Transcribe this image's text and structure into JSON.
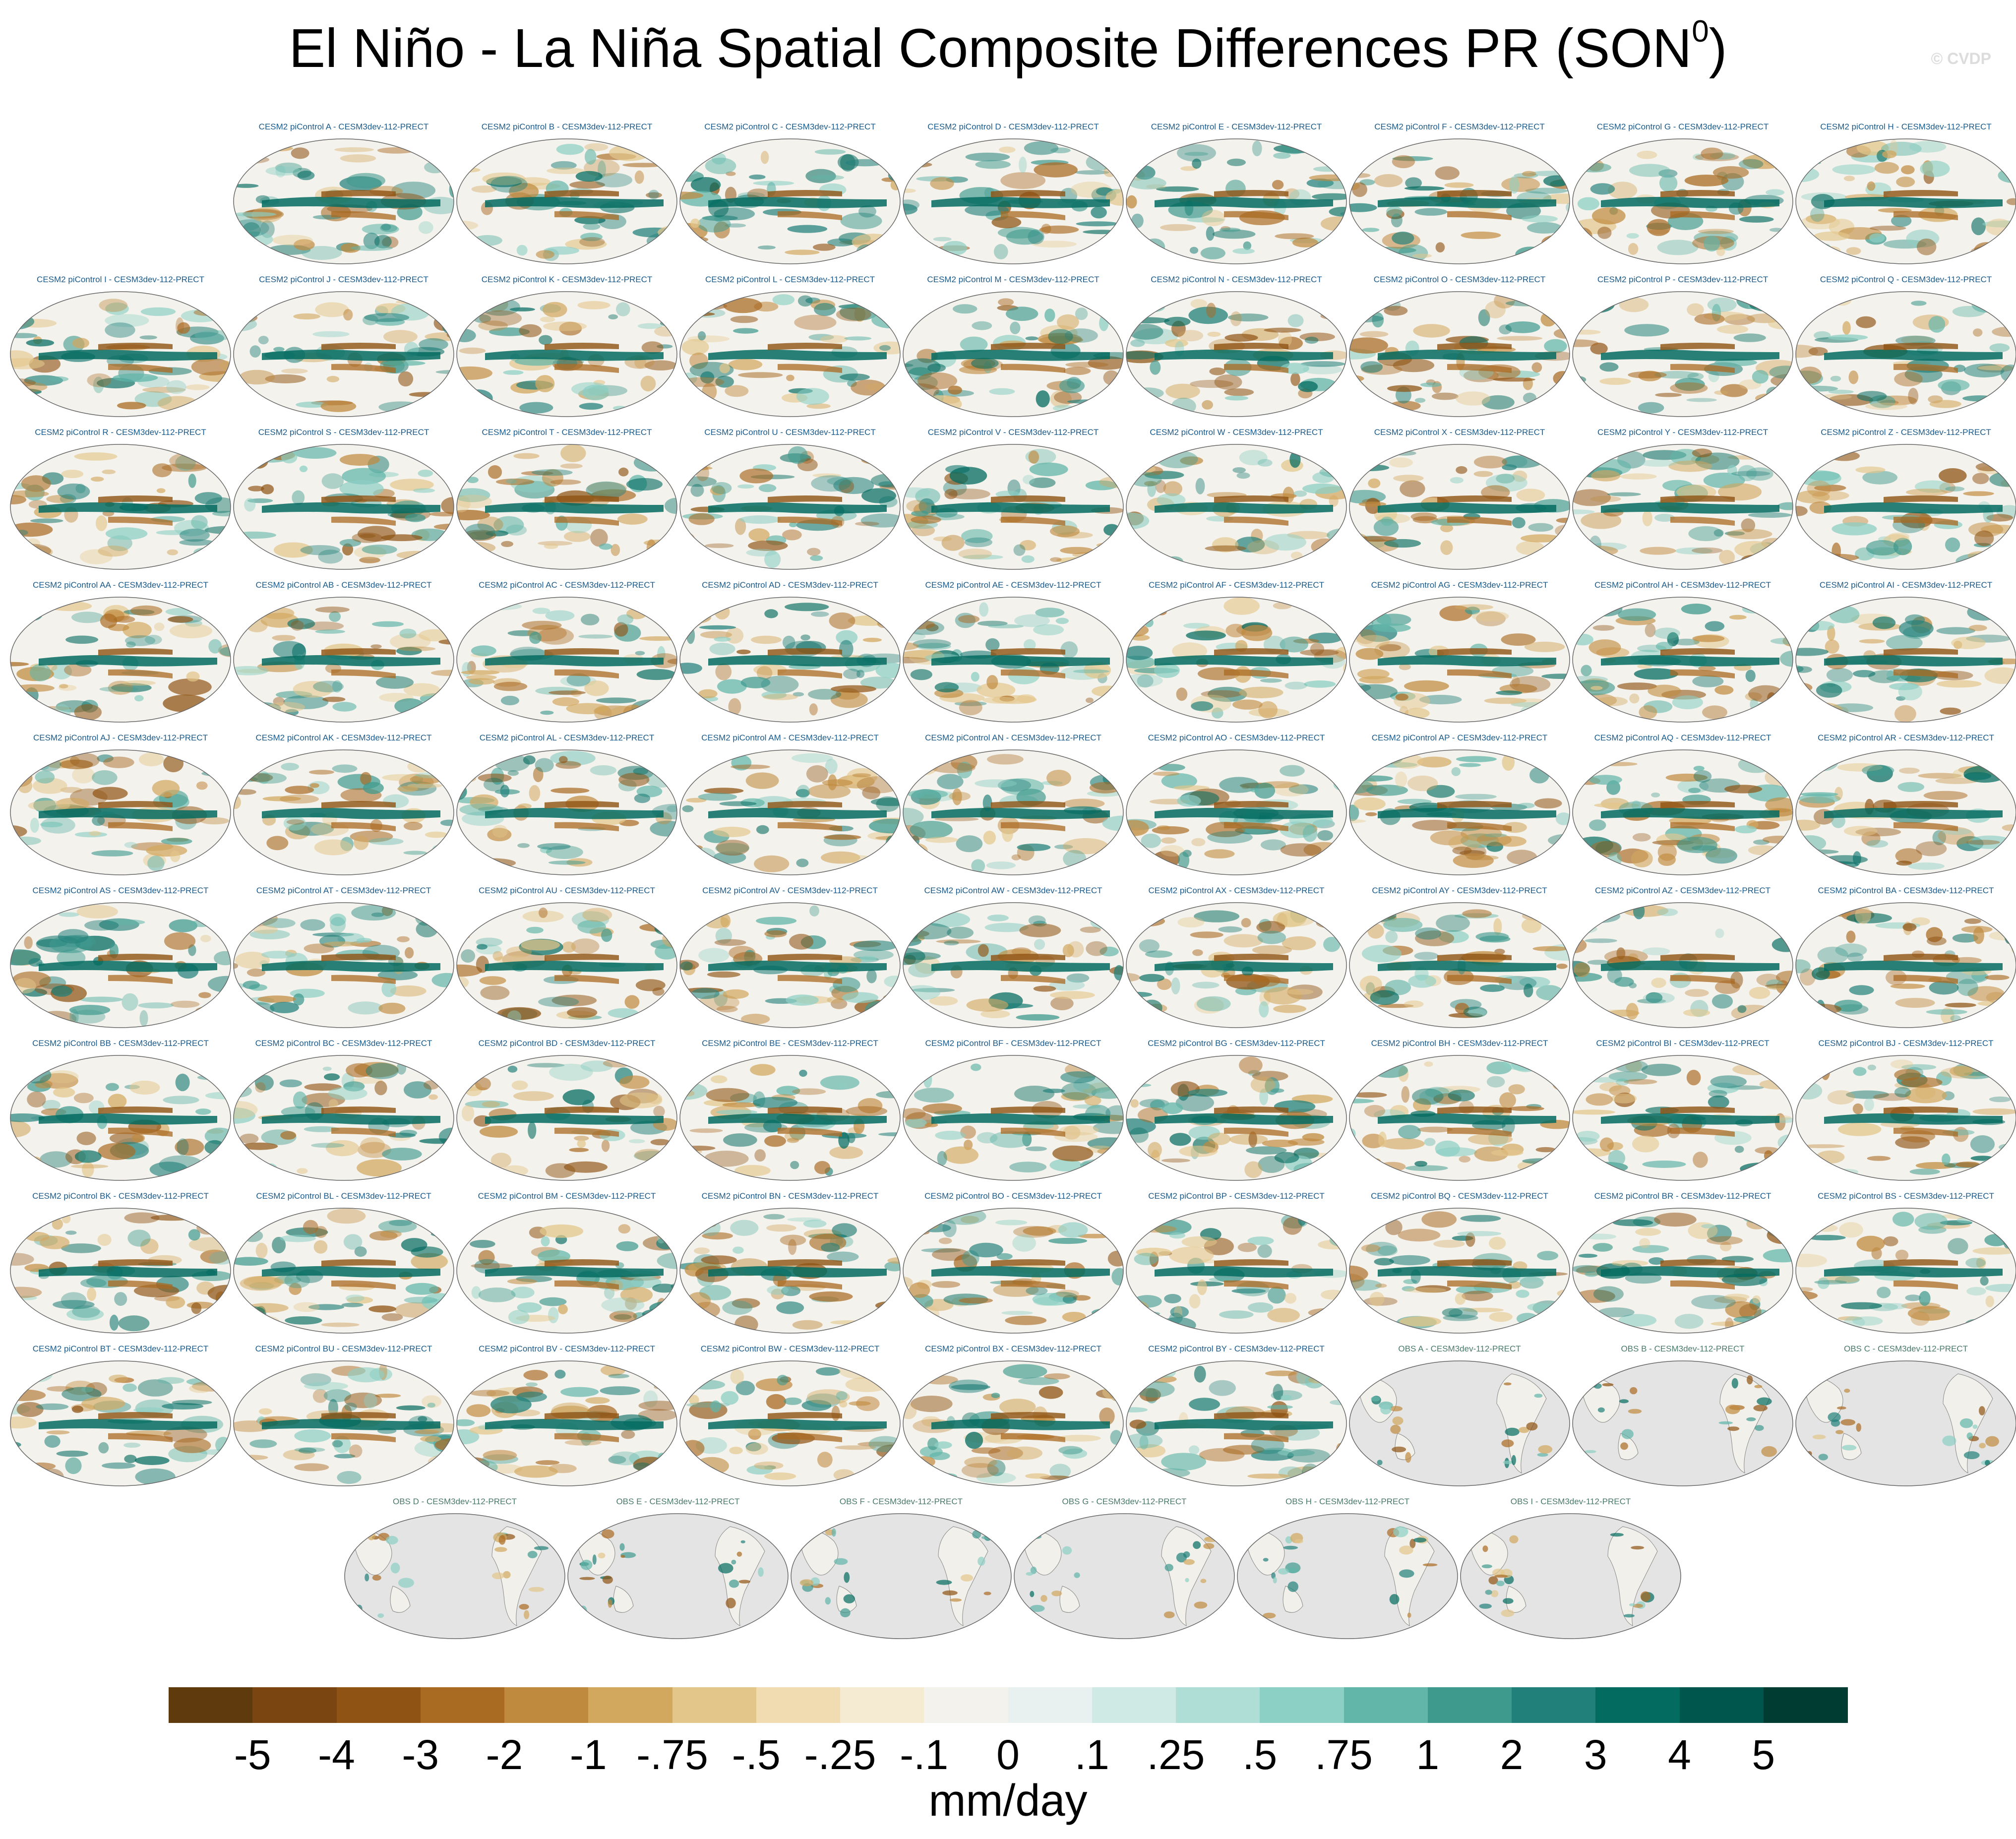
{
  "title": {
    "main": "El Niño - La Niña Spatial Composite Differences PR (SON",
    "superscript": "0",
    "close": ")"
  },
  "credit": "© CVDP",
  "model_label_template": "CESM2 piControl {id} - CESM3dev-112-PRECT",
  "obs_label_template": "OBS {id} - CESM3dev-112-PRECT",
  "model_ids": [
    "A",
    "B",
    "C",
    "D",
    "E",
    "F",
    "G",
    "H",
    "I",
    "J",
    "K",
    "L",
    "M",
    "N",
    "O",
    "P",
    "Q",
    "R",
    "S",
    "T",
    "U",
    "V",
    "W",
    "X",
    "Y",
    "Z",
    "AA",
    "AB",
    "AC",
    "AD",
    "AE",
    "AF",
    "AG",
    "AH",
    "AI",
    "AJ",
    "AK",
    "AL",
    "AM",
    "AN",
    "AO",
    "AP",
    "AQ",
    "AR",
    "AS",
    "AT",
    "AU",
    "AV",
    "AW",
    "AX",
    "AY",
    "AZ",
    "BA",
    "BB",
    "BC",
    "BD",
    "BE",
    "BF",
    "BG",
    "BH",
    "BI",
    "BJ",
    "BK",
    "BL",
    "BM",
    "BN",
    "BO",
    "BP",
    "BQ",
    "BR",
    "BS",
    "BT",
    "BU",
    "BV",
    "BW",
    "BX",
    "BY"
  ],
  "obs_ids": [
    "A",
    "B",
    "C",
    "D",
    "E",
    "F",
    "G",
    "H",
    "I"
  ],
  "colorbar": {
    "units": "mm/day",
    "tick_labels": [
      "-5",
      "-4",
      "-3",
      "-2",
      "-1",
      "-.75",
      "-.5",
      "-.25",
      "-.1",
      "0",
      ".1",
      ".25",
      ".5",
      ".75",
      "1",
      "2",
      "3",
      "4",
      "5"
    ],
    "colors": [
      "#5e3a0c",
      "#7a4510",
      "#8f5313",
      "#a96a22",
      "#c08a3e",
      "#d2a75e",
      "#e3c68a",
      "#f0dcb0",
      "#f5ebd2",
      "#f4f2ec",
      "#e8f1ef",
      "#cfeae5",
      "#aeded6",
      "#8ccfc4",
      "#61b5a9",
      "#3f9a8e",
      "#21807a",
      "#036b60",
      "#00564c",
      "#003c32"
    ]
  },
  "icons": {
    "map": "global-map-icon"
  }
}
